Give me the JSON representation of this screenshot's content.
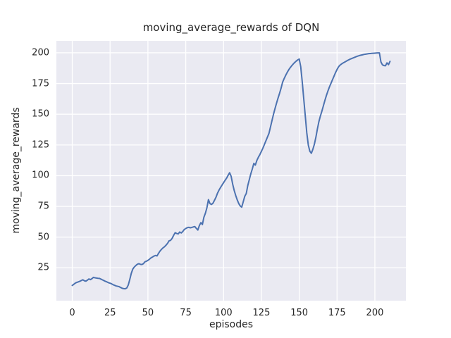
{
  "chart_data": {
    "type": "line",
    "title": "moving_average_rewards of DQN",
    "xlabel": "episodes",
    "ylabel": "moving_average_rewards",
    "x_ticks": [
      0,
      25,
      50,
      75,
      100,
      125,
      150,
      175,
      200
    ],
    "y_ticks": [
      25,
      50,
      75,
      100,
      125,
      150,
      175,
      200
    ],
    "xlim": [
      -10.5,
      220.5
    ],
    "ylim": [
      -1.7,
      209.7
    ],
    "grid": true,
    "legend_position": "none",
    "style": {
      "figure_background": "#ffffff",
      "axes_background": "#eaeaf2",
      "grid_color": "#ffffff",
      "line_color": "#4c72b0",
      "text_color": "#262626",
      "line_width": 2,
      "grid_width": 1.3
    },
    "series": [
      {
        "name": "moving_average_rewards",
        "points": [
          [
            0,
            10.7
          ],
          [
            1,
            11.6
          ],
          [
            2,
            12.6
          ],
          [
            3,
            13.2
          ],
          [
            4,
            13.6
          ],
          [
            5,
            14.1
          ],
          [
            6,
            14.7
          ],
          [
            7,
            15.3
          ],
          [
            8,
            14.5
          ],
          [
            9,
            14.2
          ],
          [
            10,
            15.0
          ],
          [
            11,
            16.0
          ],
          [
            12,
            15.4
          ],
          [
            13,
            16.2
          ],
          [
            14,
            17.3
          ],
          [
            15,
            16.9
          ],
          [
            16,
            16.7
          ],
          [
            17,
            16.5
          ],
          [
            18,
            16.4
          ],
          [
            19,
            15.8
          ],
          [
            20,
            15.2
          ],
          [
            21,
            14.6
          ],
          [
            22,
            14.0
          ],
          [
            23,
            13.5
          ],
          [
            24,
            12.9
          ],
          [
            25,
            12.5
          ],
          [
            26,
            12.0
          ],
          [
            27,
            11.3
          ],
          [
            28,
            10.8
          ],
          [
            29,
            10.3
          ],
          [
            30,
            10.0
          ],
          [
            31,
            9.7
          ],
          [
            32,
            9.0
          ],
          [
            33,
            8.4
          ],
          [
            34,
            8.1
          ],
          [
            35,
            8.0
          ],
          [
            36,
            8.6
          ],
          [
            37,
            11.0
          ],
          [
            38,
            15.5
          ],
          [
            39,
            20.5
          ],
          [
            40,
            24.0
          ],
          [
            41,
            25.7
          ],
          [
            42,
            26.9
          ],
          [
            43,
            27.9
          ],
          [
            44,
            28.4
          ],
          [
            45,
            27.9
          ],
          [
            46,
            27.7
          ],
          [
            47,
            28.4
          ],
          [
            48,
            29.9
          ],
          [
            49,
            30.4
          ],
          [
            50,
            31.1
          ],
          [
            51,
            32.0
          ],
          [
            52,
            33.1
          ],
          [
            53,
            33.8
          ],
          [
            54,
            34.6
          ],
          [
            55,
            35.1
          ],
          [
            56,
            34.7
          ],
          [
            57,
            36.8
          ],
          [
            58,
            38.7
          ],
          [
            59,
            40.1
          ],
          [
            60,
            41.3
          ],
          [
            61,
            42.2
          ],
          [
            62,
            43.5
          ],
          [
            63,
            45.0
          ],
          [
            64,
            47.0
          ],
          [
            65,
            47.4
          ],
          [
            66,
            49.0
          ],
          [
            67,
            51.5
          ],
          [
            68,
            53.6
          ],
          [
            69,
            53.0
          ],
          [
            70,
            52.6
          ],
          [
            71,
            54.2
          ],
          [
            72,
            53.4
          ],
          [
            73,
            54.5
          ],
          [
            74,
            56.2
          ],
          [
            75,
            57.0
          ],
          [
            76,
            57.7
          ],
          [
            77,
            58.0
          ],
          [
            78,
            57.6
          ],
          [
            79,
            57.9
          ],
          [
            80,
            58.3
          ],
          [
            81,
            58.6
          ],
          [
            82,
            57.1
          ],
          [
            83,
            55.8
          ],
          [
            84,
            59.4
          ],
          [
            85,
            61.8
          ],
          [
            86,
            60.2
          ],
          [
            87,
            66.2
          ],
          [
            88,
            69.5
          ],
          [
            89,
            74.0
          ],
          [
            90,
            80.5
          ],
          [
            91,
            77.3
          ],
          [
            92,
            76.6
          ],
          [
            93,
            77.6
          ],
          [
            94,
            80.0
          ],
          [
            95,
            82.5
          ],
          [
            96,
            85.8
          ],
          [
            97,
            88.3
          ],
          [
            98,
            90.4
          ],
          [
            99,
            92.4
          ],
          [
            100,
            94.3
          ],
          [
            101,
            96.2
          ],
          [
            102,
            98.0
          ],
          [
            103,
            100.3
          ],
          [
            104,
            102.4
          ],
          [
            105,
            99.5
          ],
          [
            106,
            93.2
          ],
          [
            107,
            88.1
          ],
          [
            108,
            84.0
          ],
          [
            109,
            80.4
          ],
          [
            110,
            77.4
          ],
          [
            111,
            75.4
          ],
          [
            112,
            74.4
          ],
          [
            113,
            78.8
          ],
          [
            114,
            83.2
          ],
          [
            115,
            85.5
          ],
          [
            116,
            92.0
          ],
          [
            117,
            96.8
          ],
          [
            118,
            101.5
          ],
          [
            119,
            105.5
          ],
          [
            120,
            110.0
          ],
          [
            121,
            108.6
          ],
          [
            122,
            112.4
          ],
          [
            123,
            115.0
          ],
          [
            124,
            117.2
          ],
          [
            125,
            119.8
          ],
          [
            126,
            122.4
          ],
          [
            127,
            125.4
          ],
          [
            128,
            128.4
          ],
          [
            129,
            131.4
          ],
          [
            130,
            134.4
          ],
          [
            131,
            139.6
          ],
          [
            132,
            144.8
          ],
          [
            133,
            150.0
          ],
          [
            134,
            154.6
          ],
          [
            135,
            159.0
          ],
          [
            136,
            163.1
          ],
          [
            137,
            167.0
          ],
          [
            138,
            171.2
          ],
          [
            139,
            176.0
          ],
          [
            140,
            178.9
          ],
          [
            141,
            181.5
          ],
          [
            142,
            183.9
          ],
          [
            143,
            186.0
          ],
          [
            144,
            187.8
          ],
          [
            145,
            189.4
          ],
          [
            146,
            190.8
          ],
          [
            147,
            192.1
          ],
          [
            148,
            193.2
          ],
          [
            149,
            194.2
          ],
          [
            150,
            194.9
          ],
          [
            151,
            188.5
          ],
          [
            152,
            176.3
          ],
          [
            153,
            162.4
          ],
          [
            154,
            148.6
          ],
          [
            155,
            134.8
          ],
          [
            156,
            124.9
          ],
          [
            157,
            119.9
          ],
          [
            158,
            118.2
          ],
          [
            159,
            121.4
          ],
          [
            160,
            125.5
          ],
          [
            161,
            131.2
          ],
          [
            162,
            138.0
          ],
          [
            163,
            144.0
          ],
          [
            164,
            148.6
          ],
          [
            165,
            152.6
          ],
          [
            166,
            157.0
          ],
          [
            167,
            161.4
          ],
          [
            168,
            165.4
          ],
          [
            169,
            169.0
          ],
          [
            170,
            172.3
          ],
          [
            171,
            175.2
          ],
          [
            172,
            178.1
          ],
          [
            173,
            181.0
          ],
          [
            174,
            183.9
          ],
          [
            175,
            186.4
          ],
          [
            176,
            188.6
          ],
          [
            177,
            190.0
          ],
          [
            178,
            190.9
          ],
          [
            179,
            191.7
          ],
          [
            180,
            192.4
          ],
          [
            181,
            193.1
          ],
          [
            182,
            193.8
          ],
          [
            183,
            194.4
          ],
          [
            184,
            195.0
          ],
          [
            185,
            195.5
          ],
          [
            186,
            196.0
          ],
          [
            187,
            196.5
          ],
          [
            188,
            197.0
          ],
          [
            189,
            197.4
          ],
          [
            190,
            197.8
          ],
          [
            191,
            198.1
          ],
          [
            192,
            198.4
          ],
          [
            193,
            198.7
          ],
          [
            194,
            198.9
          ],
          [
            195,
            199.1
          ],
          [
            196,
            199.3
          ],
          [
            197,
            199.4
          ],
          [
            198,
            199.5
          ],
          [
            199,
            199.6
          ],
          [
            200,
            199.7
          ],
          [
            201,
            199.8
          ],
          [
            202,
            199.9
          ],
          [
            203,
            199.9
          ],
          [
            204,
            192.5
          ],
          [
            205,
            190.2
          ],
          [
            206,
            189.6
          ],
          [
            207,
            189.4
          ],
          [
            208,
            191.8
          ],
          [
            209,
            190.3
          ],
          [
            210,
            193.0
          ]
        ]
      }
    ]
  }
}
